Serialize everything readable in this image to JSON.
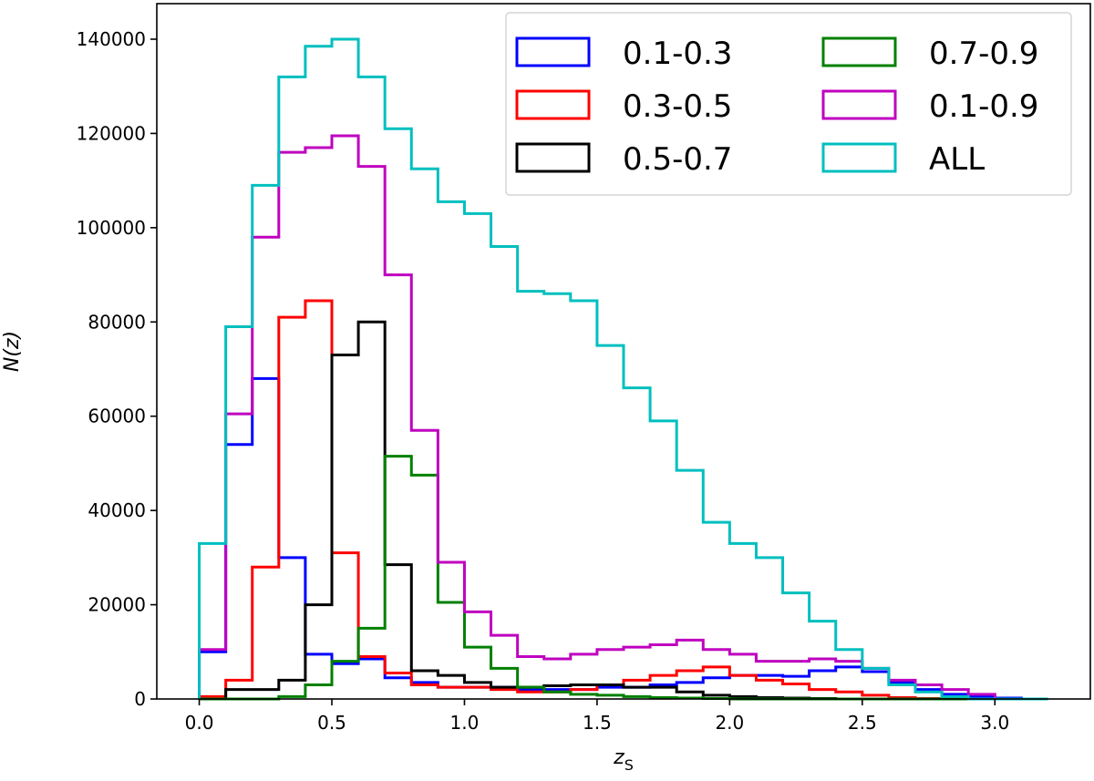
{
  "chart_data": {
    "type": "histogram-step",
    "title": "",
    "xlabel": "z",
    "xlabel_sub": "S",
    "ylabel": "N(z)",
    "xlim": [
      -0.16,
      3.36
    ],
    "ylim": [
      0,
      140000
    ],
    "xticks": [
      0.0,
      0.5,
      1.0,
      1.5,
      2.0,
      2.5,
      3.0
    ],
    "xtick_labels": [
      "0.0",
      "0.5",
      "1.0",
      "1.5",
      "2.0",
      "2.5",
      "3.0"
    ],
    "yticks": [
      0,
      20000,
      40000,
      60000,
      80000,
      100000,
      120000,
      140000
    ],
    "ytick_labels": [
      "0",
      "20000",
      "40000",
      "60000",
      "80000",
      "100000",
      "120000",
      "140000"
    ],
    "bin_width": 0.1,
    "bin_start": 0.0,
    "legend_position": "top-right",
    "legend_columns": 2,
    "series": [
      {
        "name": "0.1-0.3",
        "color": "#0000ff",
        "values": [
          10000,
          54000,
          68000,
          30000,
          9500,
          7500,
          8500,
          4500,
          3500,
          2500,
          2500,
          2500,
          2000,
          2000,
          2000,
          2500,
          2500,
          3000,
          3500,
          4500,
          5000,
          5000,
          4800,
          6000,
          6800,
          5800,
          3500,
          2000,
          1000,
          500,
          200,
          0
        ]
      },
      {
        "name": "0.3-0.5",
        "color": "#ff0000",
        "values": [
          500,
          4000,
          28000,
          81000,
          84500,
          31000,
          9000,
          5500,
          3000,
          2500,
          2500,
          2000,
          1500,
          1500,
          2000,
          3000,
          4000,
          5000,
          6000,
          6800,
          5000,
          4000,
          3200,
          2000,
          1500,
          800,
          300,
          100,
          0,
          0,
          0,
          0
        ]
      },
      {
        "name": "0.5-0.7",
        "color": "#000000",
        "values": [
          0,
          2000,
          2000,
          4000,
          20000,
          73000,
          80000,
          28500,
          6000,
          5000,
          3500,
          2500,
          2500,
          2800,
          3000,
          3000,
          2500,
          2500,
          1500,
          800,
          500,
          300,
          200,
          100,
          0,
          0,
          0,
          0,
          0,
          0,
          0,
          0
        ]
      },
      {
        "name": "0.7-0.9",
        "color": "#008000",
        "values": [
          0,
          0,
          0,
          500,
          3000,
          8000,
          15000,
          51500,
          47500,
          20500,
          11000,
          6500,
          2500,
          1500,
          1000,
          800,
          500,
          300,
          200,
          100,
          0,
          0,
          0,
          0,
          0,
          0,
          0,
          0,
          0,
          0,
          0,
          0
        ]
      },
      {
        "name": "0.1-0.9",
        "color": "#bf00bf",
        "values": [
          10500,
          60500,
          98000,
          116000,
          117000,
          119500,
          113000,
          90000,
          57000,
          29000,
          18500,
          13500,
          9000,
          8500,
          9500,
          10500,
          11000,
          11500,
          12500,
          10500,
          9500,
          8000,
          8000,
          8500,
          8000,
          6500,
          4000,
          3000,
          2000,
          1000,
          0,
          0
        ]
      },
      {
        "name": "ALL",
        "color": "#00bfbf",
        "values": [
          33000,
          79000,
          109000,
          132000,
          138500,
          140000,
          132000,
          121000,
          112500,
          105500,
          103000,
          96000,
          86500,
          86000,
          84500,
          75000,
          66000,
          59000,
          48500,
          37500,
          33000,
          30000,
          22500,
          16500,
          10500,
          6500,
          3000,
          1500,
          500,
          0,
          0,
          0
        ]
      }
    ]
  }
}
